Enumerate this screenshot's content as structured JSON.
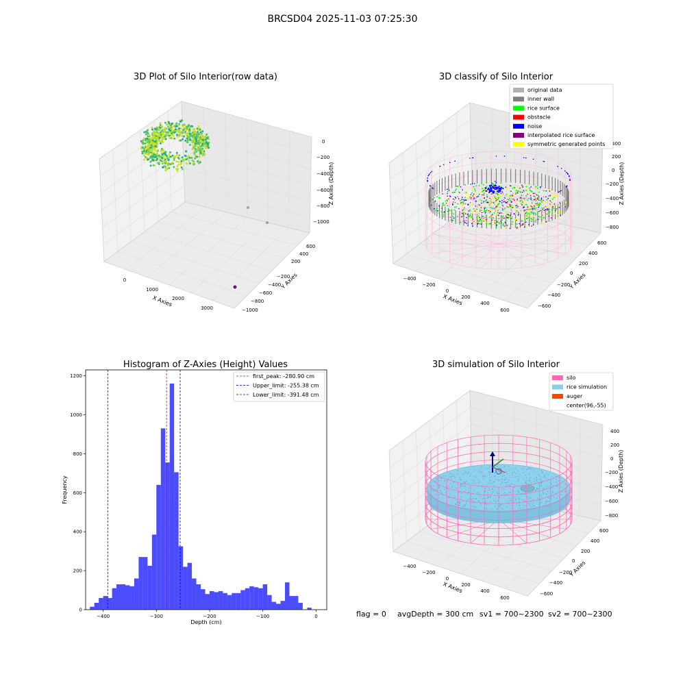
{
  "figure": {
    "suptitle": "BRCSD04 2025-11-03 07:25:30",
    "footer": {
      "flag": "flag = 0",
      "avgDepth": "avgDepth = 300 cm",
      "sv1": "sv1 = 700~2300",
      "sv2": "sv2 = 700~2300"
    }
  },
  "panels": {
    "raw": {
      "title": "3D Plot of Silo Interior(row data)",
      "xlabel": "X Axies",
      "ylabel": "Y Axies",
      "zlabel": "Z Axies (Depth)",
      "xticks": [
        "0",
        "1000",
        "2000",
        "3000"
      ],
      "yticks": [
        "600",
        "400",
        "200",
        "−200",
        "−400",
        "−600",
        "−800",
        "−1000"
      ],
      "zticks": [
        "0",
        "−200",
        "−400",
        "−600",
        "−800",
        "−1000"
      ]
    },
    "classify": {
      "title": "3D classify of Silo Interior",
      "xlabel": "X Axies",
      "ylabel": "Y Axies",
      "zlabel": "Z Axies (Depth)",
      "xticks": [
        "−400",
        "−200",
        "0",
        "200",
        "400",
        "600"
      ],
      "yticks": [
        "600",
        "400",
        "200",
        "0",
        "−200",
        "−400",
        "−600"
      ],
      "zticks": [
        "400",
        "200",
        "0",
        "−200",
        "−400",
        "−600",
        "−800"
      ],
      "legend": [
        {
          "label": "original data",
          "color": "#b0b0b0"
        },
        {
          "label": "inner wall",
          "color": "#808080"
        },
        {
          "label": "rice surface",
          "color": "#00ff00"
        },
        {
          "label": "obstacle",
          "color": "#ff0000"
        },
        {
          "label": "noise",
          "color": "#0000ff"
        },
        {
          "label": "interpolated rice surface",
          "color": "#800080"
        },
        {
          "label": "symmetric generated points",
          "color": "#ffff00"
        }
      ]
    },
    "simulation": {
      "title": "3D simulation of Silo Interior",
      "xlabel": "X Axies",
      "ylabel": "Y Axies",
      "zlabel": "Z Axies (Depth)",
      "xticks": [
        "−400",
        "−200",
        "0",
        "200",
        "400",
        "600"
      ],
      "yticks": [
        "600",
        "400",
        "200",
        "0",
        "−200",
        "−400",
        "−600"
      ],
      "zticks": [
        "400",
        "200",
        "0",
        "−200",
        "−400",
        "−600",
        "−800"
      ],
      "legend": [
        {
          "label": "silo",
          "color": "#ff69b4"
        },
        {
          "label": "rice simulation",
          "color": "#87ceeb"
        },
        {
          "label": "auger",
          "color": "#ff4500"
        },
        {
          "label": "center(96,-55)",
          "color": "#ffffff"
        }
      ]
    }
  },
  "chart_data": [
    {
      "type": "bar",
      "title": "Histogram of Z-Axies (Height) Values",
      "xlabel": "Depth (cm)",
      "ylabel": "Frequency",
      "xlim": [
        -433,
        20
      ],
      "ylim": [
        0,
        1230
      ],
      "xticks": [
        -400,
        -300,
        -200,
        -100,
        0
      ],
      "yticks": [
        0,
        200,
        400,
        600,
        800,
        1000,
        1200
      ],
      "bin_width": 8.33,
      "bin_start": -425,
      "color": "#0000ff",
      "values": [
        15,
        35,
        60,
        70,
        60,
        110,
        130,
        130,
        125,
        120,
        160,
        270,
        270,
        225,
        385,
        640,
        930,
        755,
        1160,
        705,
        325,
        220,
        240,
        160,
        130,
        105,
        80,
        95,
        90,
        95,
        85,
        75,
        85,
        85,
        100,
        110,
        120,
        115,
        110,
        130,
        75,
        40,
        30,
        45,
        140,
        70,
        70,
        35,
        0,
        10
      ],
      "lines": [
        {
          "label": "first_peak: -280.90 cm",
          "value": -280.9,
          "color": "#ff0000"
        },
        {
          "label": "Upper_limit: -255.38 cm",
          "value": -255.38,
          "color": "#0000cc"
        },
        {
          "label": "Lower_limit: -391.48 cm",
          "value": -391.48,
          "color": "#0000cc"
        }
      ]
    }
  ]
}
